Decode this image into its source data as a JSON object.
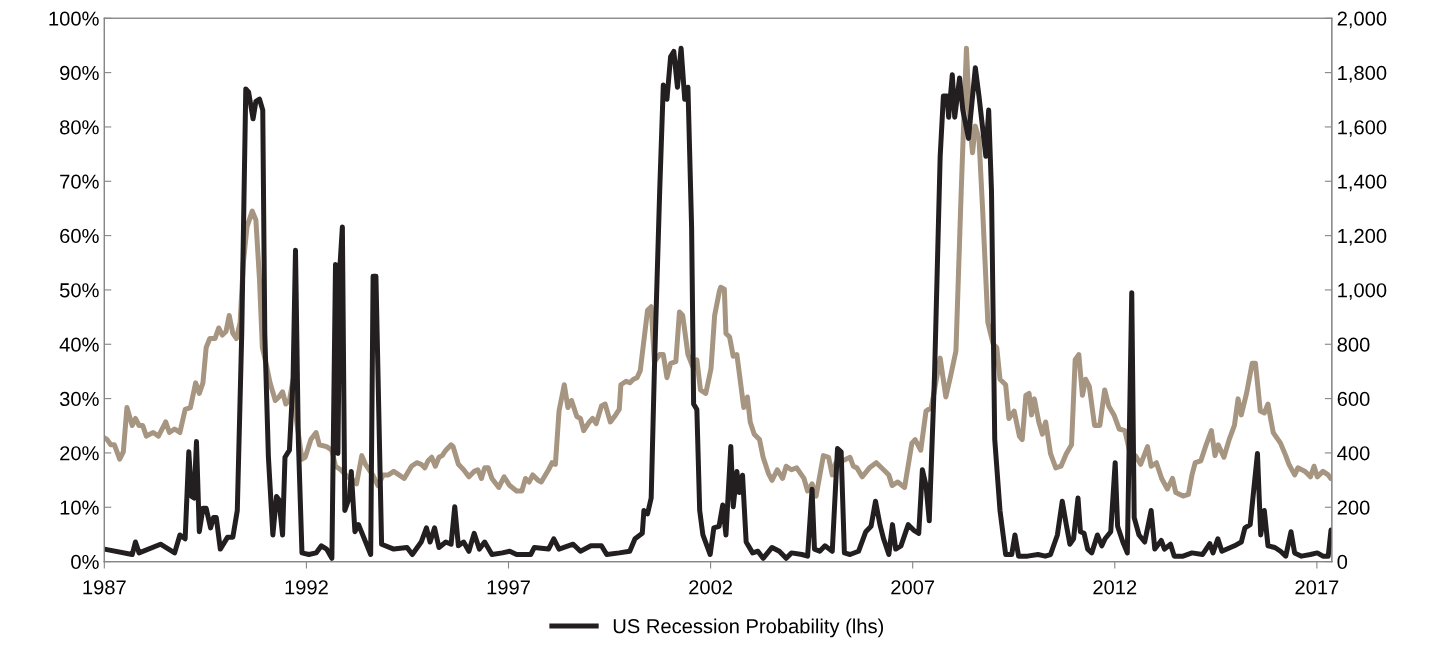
{
  "chart_data": {
    "type": "line",
    "legend": "bottom",
    "grid": false,
    "marker": "none",
    "line_style": "solid",
    "xlim": [
      1987,
      2017.37
    ],
    "xticks": [
      1987,
      1992,
      1997,
      2002,
      2007,
      2012,
      2017
    ],
    "ylim": [
      0,
      100
    ],
    "yticks": [
      {
        "value": 0,
        "label": "0%"
      },
      {
        "value": 10,
        "label": "10%"
      },
      {
        "value": 20,
        "label": "20%"
      },
      {
        "value": 30,
        "label": "30%"
      },
      {
        "value": 40,
        "label": "40%"
      },
      {
        "value": 50,
        "label": "50%"
      },
      {
        "value": 60,
        "label": "60%"
      },
      {
        "value": 70,
        "label": "70%"
      },
      {
        "value": 80,
        "label": "80%"
      },
      {
        "value": 90,
        "label": "90%"
      },
      {
        "value": 100,
        "label": "100%"
      }
    ],
    "y2lim": [
      0,
      2000
    ],
    "y2ticks": [
      0,
      {
        "value": 200,
        "label": "200"
      },
      {
        "value": 400,
        "label": "400"
      },
      {
        "value": 600,
        "label": "600"
      },
      {
        "value": 800,
        "label": "800"
      },
      {
        "value": 1000,
        "label": "1,000"
      },
      {
        "value": 1200,
        "label": "1,200"
      },
      {
        "value": 1400,
        "label": "1,400"
      },
      {
        "value": 1600,
        "label": "1,600"
      },
      {
        "value": 1800,
        "label": "1,800"
      },
      {
        "value": 2000,
        "label": "2,000"
      }
    ],
    "series": [
      {
        "axis": "y2",
        "color": "#a69580",
        "x": [
          1987.0,
          1987.07,
          1987.16,
          1987.25,
          1987.38,
          1987.47,
          1987.56,
          1987.69,
          1987.77,
          1987.86,
          1987.95,
          1988.04,
          1988.21,
          1988.34,
          1988.52,
          1988.61,
          1988.74,
          1988.87,
          1989.0,
          1989.13,
          1989.26,
          1989.35,
          1989.44,
          1989.52,
          1989.61,
          1989.74,
          1989.83,
          1989.92,
          1990.01,
          1990.09,
          1990.18,
          1990.27,
          1990.36,
          1990.44,
          1990.53,
          1990.66,
          1990.75,
          1990.84,
          1990.91,
          1991.01,
          1991.1,
          1991.23,
          1991.32,
          1991.41,
          1991.49,
          1991.58,
          1991.67,
          1991.76,
          1991.89,
          1991.97,
          1992.11,
          1992.24,
          1992.32,
          1992.5,
          1992.63,
          1992.72,
          1992.85,
          1993.02,
          1993.16,
          1993.24,
          1993.37,
          1993.46,
          1993.64,
          1993.77,
          1993.9,
          1994.03,
          1994.16,
          1994.29,
          1994.42,
          1994.6,
          1994.73,
          1994.84,
          1994.93,
          1995.01,
          1995.1,
          1995.19,
          1995.28,
          1995.36,
          1995.45,
          1995.58,
          1995.63,
          1995.76,
          1995.89,
          1996.02,
          1996.15,
          1996.24,
          1996.33,
          1996.41,
          1996.5,
          1996.59,
          1996.76,
          1996.89,
          1997.03,
          1997.2,
          1997.33,
          1997.42,
          1997.51,
          1997.6,
          1997.73,
          1997.81,
          1997.99,
          1998.08,
          1998.16,
          1998.25,
          1998.38,
          1998.47,
          1998.56,
          1998.69,
          1998.78,
          1998.86,
          1999.0,
          1999.08,
          1999.17,
          1999.3,
          1999.39,
          1999.52,
          1999.65,
          1999.74,
          1999.78,
          1999.91,
          2000.0,
          2000.09,
          2000.18,
          2000.26,
          2000.44,
          2000.53,
          2000.61,
          2000.74,
          2000.83,
          2000.92,
          2001.01,
          2001.14,
          2001.23,
          2001.31,
          2001.44,
          2001.58,
          2001.66,
          2001.75,
          2001.88,
          2002.01,
          2002.1,
          2002.22,
          2002.25,
          2002.34,
          2002.38,
          2002.47,
          2002.56,
          2002.65,
          2002.73,
          2002.82,
          2002.91,
          2002.98,
          2003.08,
          2003.21,
          2003.3,
          2003.43,
          2003.52,
          2003.65,
          2003.78,
          2003.87,
          2004.0,
          2004.13,
          2004.31,
          2004.4,
          2004.51,
          2004.61,
          2004.79,
          2004.92,
          2005.01,
          2005.1,
          2005.27,
          2005.45,
          2005.53,
          2005.62,
          2005.75,
          2005.93,
          2006.1,
          2006.28,
          2006.41,
          2006.49,
          2006.63,
          2006.8,
          2006.98,
          2007.06,
          2007.2,
          2007.33,
          2007.46,
          2007.54,
          2007.68,
          2007.82,
          2007.94,
          2008.07,
          2008.2,
          2008.33,
          2008.42,
          2008.48,
          2008.55,
          2008.64,
          2008.73,
          2008.86,
          2008.99,
          2009.08,
          2009.16,
          2009.3,
          2009.38,
          2009.51,
          2009.64,
          2009.71,
          2009.8,
          2009.88,
          2009.94,
          2010.01,
          2010.12,
          2010.21,
          2010.29,
          2010.41,
          2010.54,
          2010.67,
          2010.8,
          2010.93,
          2011.02,
          2011.11,
          2011.2,
          2011.28,
          2011.37,
          2011.5,
          2011.63,
          2011.75,
          2011.85,
          2011.98,
          2012.11,
          2012.25,
          2012.38,
          2012.51,
          2012.64,
          2012.81,
          2012.9,
          2013.03,
          2013.16,
          2013.3,
          2013.43,
          2013.51,
          2013.69,
          2013.82,
          2013.91,
          2013.99,
          2014.13,
          2014.26,
          2014.39,
          2014.48,
          2014.56,
          2014.7,
          2014.83,
          2014.96,
          2015.05,
          2015.13,
          2015.26,
          2015.4,
          2015.48,
          2015.6,
          2015.7,
          2015.79,
          2015.92,
          2016.1,
          2016.23,
          2016.31,
          2016.45,
          2016.53,
          2016.71,
          2016.84,
          2016.93,
          2017.01,
          2017.15,
          2017.28,
          2017.34
        ],
        "values": [
          456,
          449,
          430,
          430,
          377,
          404,
          567,
          501,
          527,
          501,
          501,
          462,
          475,
          462,
          514,
          475,
          488,
          475,
          560,
          567,
          658,
          619,
          658,
          788,
          821,
          821,
          860,
          834,
          847,
          906,
          840,
          821,
          880,
          1101,
          1232,
          1290,
          1258,
          1036,
          788,
          723,
          658,
          593,
          606,
          625,
          580,
          593,
          671,
          514,
          377,
          384,
          449,
          475,
          430,
          423,
          410,
          351,
          338,
          312,
          299,
          286,
          390,
          358,
          319,
          280,
          319,
          319,
          332,
          319,
          306,
          351,
          364,
          358,
          345,
          371,
          384,
          351,
          384,
          390,
          410,
          430,
          423,
          358,
          338,
          312,
          332,
          338,
          306,
          345,
          345,
          306,
          273,
          312,
          280,
          260,
          260,
          306,
          293,
          319,
          299,
          293,
          338,
          364,
          358,
          554,
          651,
          567,
          593,
          534,
          527,
          482,
          514,
          527,
          508,
          573,
          580,
          514,
          540,
          560,
          651,
          664,
          658,
          671,
          677,
          703,
          925,
          938,
          736,
          762,
          762,
          677,
          730,
          736,
          919,
          906,
          762,
          710,
          743,
          632,
          619,
          710,
          906,
          997,
          1010,
          1003,
          840,
          827,
          756,
          762,
          671,
          567,
          606,
          514,
          469,
          449,
          384,
          325,
          299,
          338,
          306,
          351,
          338,
          345,
          306,
          260,
          286,
          241,
          390,
          384,
          319,
          364,
          371,
          384,
          351,
          345,
          312,
          345,
          364,
          338,
          319,
          280,
          293,
          273,
          436,
          449,
          410,
          554,
          567,
          632,
          749,
          606,
          684,
          775,
          1362,
          1890,
          1597,
          1505,
          1603,
          1558,
          1297,
          880,
          801,
          788,
          671,
          651,
          527,
          554,
          462,
          449,
          612,
          619,
          540,
          599,
          514,
          469,
          514,
          397,
          345,
          351,
          397,
          430,
          743,
          762,
          612,
          671,
          645,
          501,
          501,
          632,
          573,
          540,
          488,
          482,
          397,
          390,
          358,
          423,
          351,
          364,
          306,
          267,
          306,
          254,
          241,
          247,
          319,
          364,
          371,
          430,
          482,
          390,
          430,
          384,
          449,
          501,
          599,
          540,
          619,
          730,
          730,
          554,
          547,
          580,
          475,
          436,
          390,
          358,
          319,
          345,
          332,
          312,
          351,
          312,
          332,
          319,
          306
        ]
      },
      {
        "name": "US Recession Probability (lhs)",
        "color": "#231f20",
        "x": [
          1987.0,
          1987.69,
          1987.77,
          1987.86,
          1988.39,
          1988.74,
          1988.87,
          1989.0,
          1989.09,
          1989.16,
          1989.22,
          1989.28,
          1989.35,
          1989.44,
          1989.52,
          1989.63,
          1989.7,
          1989.77,
          1989.87,
          1990.05,
          1990.18,
          1990.29,
          1990.4,
          1990.5,
          1990.57,
          1990.68,
          1990.75,
          1990.84,
          1990.92,
          1990.97,
          1991.06,
          1991.17,
          1991.26,
          1991.32,
          1991.41,
          1991.47,
          1991.58,
          1991.67,
          1991.73,
          1991.8,
          1991.89,
          1992.06,
          1992.24,
          1992.37,
          1992.5,
          1992.63,
          1992.72,
          1992.78,
          1992.83,
          1992.89,
          1992.95,
          1993.07,
          1993.11,
          1993.2,
          1993.29,
          1993.59,
          1993.65,
          1993.72,
          1993.86,
          1994.16,
          1994.49,
          1994.62,
          1994.84,
          1994.97,
          1995.06,
          1995.17,
          1995.28,
          1995.45,
          1995.58,
          1995.67,
          1995.76,
          1995.89,
          1996.02,
          1996.15,
          1996.28,
          1996.41,
          1996.59,
          1996.85,
          1997.03,
          1997.2,
          1997.55,
          1997.64,
          1997.99,
          1998.12,
          1998.25,
          1998.6,
          1998.78,
          1999.04,
          1999.3,
          1999.43,
          1999.74,
          2000.0,
          2000.13,
          2000.31,
          2000.35,
          2000.44,
          2000.53,
          2000.61,
          2000.74,
          2000.83,
          2000.92,
          2001.01,
          2001.09,
          2001.18,
          2001.27,
          2001.36,
          2001.44,
          2001.53,
          2001.58,
          2001.66,
          2001.73,
          2001.81,
          2001.99,
          2002.08,
          2002.21,
          2002.3,
          2002.38,
          2002.5,
          2002.56,
          2002.65,
          2002.71,
          2002.79,
          2002.88,
          2003.04,
          2003.17,
          2003.3,
          2003.52,
          2003.7,
          2003.87,
          2004.0,
          2004.26,
          2004.4,
          2004.51,
          2004.57,
          2004.7,
          2004.83,
          2005.01,
          2005.14,
          2005.23,
          2005.31,
          2005.45,
          2005.66,
          2005.84,
          2005.97,
          2006.08,
          2006.19,
          2006.28,
          2006.41,
          2006.5,
          2006.58,
          2006.71,
          2006.89,
          2007.02,
          2007.15,
          2007.24,
          2007.33,
          2007.41,
          2007.54,
          2007.68,
          2007.76,
          2007.85,
          2007.89,
          2007.98,
          2008.04,
          2008.16,
          2008.24,
          2008.38,
          2008.55,
          2008.64,
          2008.73,
          2008.81,
          2008.88,
          2008.95,
          2009.03,
          2009.16,
          2009.3,
          2009.45,
          2009.53,
          2009.62,
          2009.84,
          2010.1,
          2010.28,
          2010.41,
          2010.58,
          2010.7,
          2010.8,
          2010.89,
          2010.98,
          2011.09,
          2011.15,
          2011.24,
          2011.33,
          2011.43,
          2011.57,
          2011.68,
          2011.76,
          2011.9,
          2012.01,
          2012.07,
          2012.2,
          2012.31,
          2012.42,
          2012.48,
          2012.6,
          2012.74,
          2012.9,
          2012.99,
          2013.15,
          2013.23,
          2013.38,
          2013.47,
          2013.69,
          2013.91,
          2014.17,
          2014.35,
          2014.43,
          2014.55,
          2014.65,
          2014.96,
          2015.13,
          2015.22,
          2015.35,
          2015.53,
          2015.61,
          2015.7,
          2015.79,
          2015.96,
          2016.1,
          2016.23,
          2016.36,
          2016.45,
          2016.62,
          2016.84,
          2017.01,
          2017.15,
          2017.28,
          2017.35
        ],
        "values": [
          2.3,
          1.3,
          3.6,
          1.6,
          3.2,
          1.6,
          4.9,
          4.2,
          20.2,
          12.0,
          11.7,
          22.1,
          5.5,
          9.8,
          9.8,
          6.2,
          8.1,
          8.1,
          2.3,
          4.5,
          4.5,
          9.4,
          42.0,
          87.0,
          86.4,
          81.5,
          84.7,
          85.1,
          83.1,
          42.0,
          19.2,
          4.9,
          12.0,
          11.4,
          4.9,
          19.2,
          20.5,
          33.6,
          57.3,
          22.5,
          1.6,
          1.3,
          1.6,
          2.9,
          2.3,
          0.6,
          54.7,
          19.9,
          54.4,
          61.6,
          9.4,
          12.0,
          16.6,
          5.5,
          6.8,
          1.3,
          52.5,
          52.5,
          3.2,
          2.3,
          2.6,
          1.3,
          3.6,
          6.2,
          3.6,
          6.2,
          2.6,
          3.6,
          3.2,
          10.1,
          2.9,
          3.6,
          1.9,
          5.2,
          2.3,
          3.6,
          1.3,
          1.6,
          1.9,
          1.3,
          1.3,
          2.6,
          2.3,
          4.2,
          2.3,
          3.2,
          1.9,
          2.9,
          2.9,
          1.3,
          1.6,
          1.9,
          4.2,
          5.2,
          9.4,
          8.8,
          11.7,
          35.5,
          68.1,
          87.7,
          85.1,
          92.9,
          93.9,
          87.3,
          94.5,
          85.1,
          87.3,
          61.6,
          29.0,
          28.0,
          9.4,
          4.9,
          1.3,
          6.2,
          6.5,
          10.4,
          4.9,
          21.2,
          10.1,
          16.6,
          12.7,
          15.9,
          3.6,
          1.6,
          1.9,
          0.6,
          2.6,
          1.9,
          0.6,
          1.6,
          1.3,
          1.0,
          13.3,
          2.3,
          1.9,
          2.9,
          1.9,
          20.8,
          20.2,
          1.6,
          1.3,
          1.9,
          5.5,
          6.5,
          11.1,
          6.8,
          4.2,
          1.3,
          6.8,
          2.3,
          2.9,
          6.8,
          5.8,
          5.2,
          16.9,
          14.0,
          7.5,
          34.2,
          74.6,
          85.7,
          85.7,
          81.8,
          89.6,
          81.8,
          89.0,
          83.1,
          77.9,
          90.9,
          85.7,
          79.8,
          74.6,
          83.1,
          68.1,
          22.5,
          9.4,
          1.3,
          1.3,
          4.9,
          1.0,
          1.0,
          1.3,
          1.0,
          1.3,
          4.9,
          11.1,
          6.8,
          3.2,
          4.2,
          11.7,
          5.5,
          5.2,
          2.3,
          1.6,
          4.9,
          2.9,
          4.2,
          5.5,
          18.2,
          6.5,
          3.6,
          1.6,
          49.5,
          8.1,
          4.9,
          3.6,
          9.4,
          2.3,
          3.9,
          2.3,
          3.2,
          1.0,
          1.0,
          1.6,
          1.3,
          3.3,
          1.6,
          4.2,
          1.9,
          2.9,
          3.6,
          6.2,
          6.8,
          19.9,
          4.9,
          9.4,
          2.9,
          2.6,
          1.9,
          1.0,
          5.5,
          1.6,
          1.0,
          1.3,
          1.6,
          1.0,
          1.0,
          5.8
        ]
      }
    ]
  }
}
